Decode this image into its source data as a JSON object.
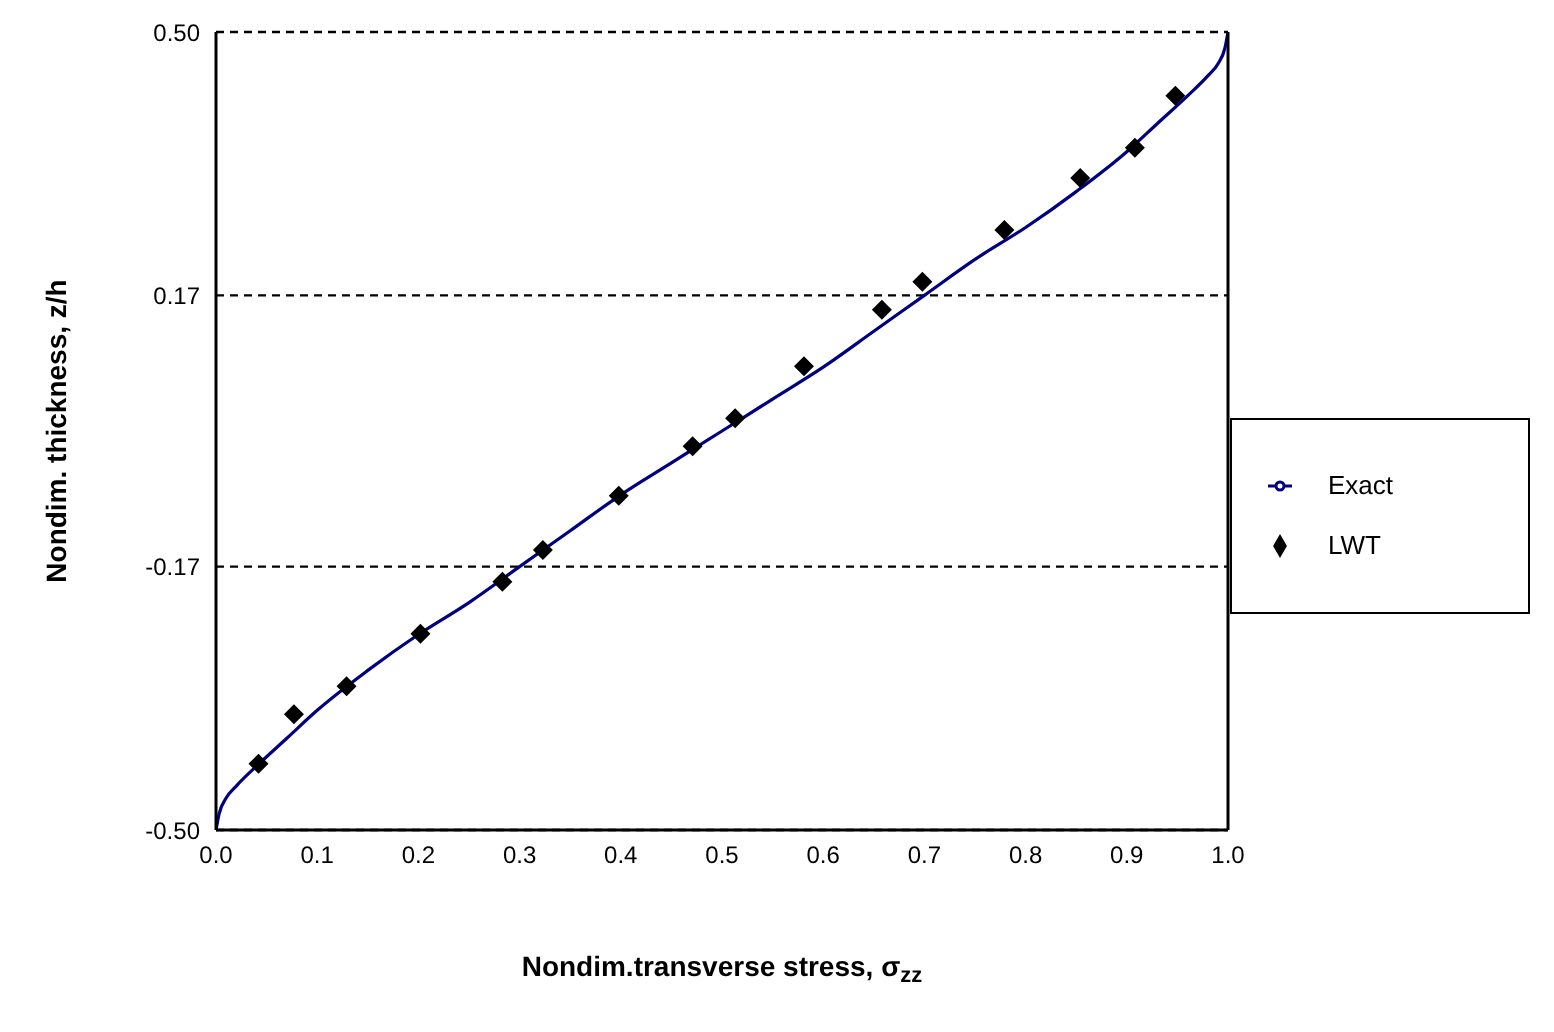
{
  "chart_data": {
    "type": "line",
    "xlabel": "Nondim.transverse stress, σ$_{zz}$",
    "ylabel": "Nondim. thickness, z/h",
    "xlim": [
      0,
      1
    ],
    "xticks": [
      {
        "value": 0,
        "label": "0.0"
      },
      {
        "value": 0.1,
        "label": "0.1"
      },
      {
        "value": 0.2,
        "label": "0.2"
      },
      {
        "value": 0.3,
        "label": "0.3"
      },
      {
        "value": 0.4,
        "label": "0.4"
      },
      {
        "value": 0.5,
        "label": "0.5"
      },
      {
        "value": 0.6,
        "label": "0.6"
      },
      {
        "value": 0.7,
        "label": "0.7"
      },
      {
        "value": 0.8,
        "label": "0.8"
      },
      {
        "value": 0.9,
        "label": "0.9"
      },
      {
        "value": 1,
        "label": "1.0"
      }
    ],
    "ylim": [
      -0.5,
      0.5
    ],
    "yticks": [
      {
        "value": -0.5,
        "label": "-0.50"
      },
      -0.17,
      0.17,
      {
        "value": 0.5,
        "label": "0.50"
      }
    ],
    "grid": "y",
    "legend": "right",
    "series": [
      {
        "name": "Exact",
        "type": "line",
        "color": "#000080",
        "marker": "none",
        "x": [
          0,
          0.003,
          0.01,
          0.02,
          0.04,
          0.07,
          0.1,
          0.15,
          0.2,
          0.25,
          0.3,
          0.35,
          0.4,
          0.45,
          0.5,
          0.55,
          0.6,
          0.65,
          0.7,
          0.75,
          0.8,
          0.85,
          0.9,
          0.93,
          0.96,
          0.98,
          0.99,
          0.997,
          1
        ],
        "values": [
          -0.5,
          -0.48,
          -0.46,
          -0.445,
          -0.42,
          -0.385,
          -0.35,
          -0.3,
          -0.255,
          -0.215,
          -0.17,
          -0.125,
          -0.08,
          -0.04,
          0,
          0.04,
          0.08,
          0.125,
          0.17,
          0.215,
          0.255,
          0.3,
          0.35,
          0.385,
          0.42,
          0.445,
          0.46,
          0.48,
          0.5
        ]
      },
      {
        "name": "LWT",
        "type": "scatter",
        "color": "#000000",
        "marker": "diamond",
        "x": [
          0.042,
          0.077,
          0.129,
          0.202,
          0.283,
          0.323,
          0.398,
          0.471,
          0.513,
          0.581,
          0.658,
          0.698,
          0.779,
          0.854,
          0.908,
          0.948
        ],
        "values": [
          -0.417,
          -0.355,
          -0.32,
          -0.254,
          -0.189,
          -0.149,
          -0.081,
          -0.019,
          0.016,
          0.081,
          0.152,
          0.187,
          0.252,
          0.317,
          0.355,
          0.42
        ]
      }
    ]
  }
}
